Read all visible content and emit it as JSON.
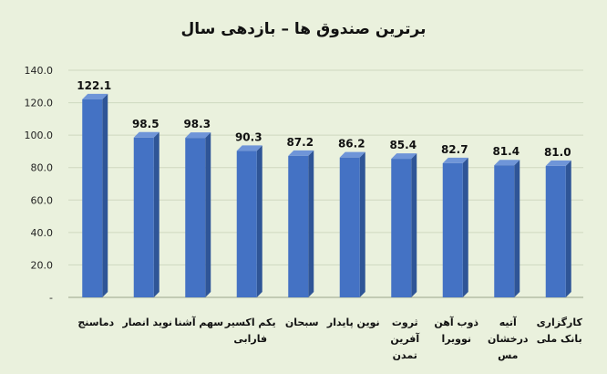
{
  "chart_data": {
    "type": "bar",
    "title": "برترین صندوق ها – بازدهی سال",
    "categories": [
      [
        "دماسنج"
      ],
      [
        "نوید انصار"
      ],
      [
        "سهم آشنا"
      ],
      [
        "یکم اکسیر",
        "فارابی"
      ],
      [
        "سبحان"
      ],
      [
        "نوین پایدار"
      ],
      [
        "ثروت",
        "آفرین",
        "تمدن"
      ],
      [
        "ذوب آهن",
        "نوویرا"
      ],
      [
        "آتیه",
        "درخشان",
        "مس"
      ],
      [
        "کارگزاری",
        "بانک ملی"
      ]
    ],
    "values": [
      122.1,
      98.5,
      98.3,
      90.3,
      87.2,
      86.2,
      85.4,
      82.7,
      81.4,
      81.0
    ],
    "data_labels": [
      "122.1",
      "98.5",
      "98.3",
      "90.3",
      "87.2",
      "86.2",
      "85.4",
      "82.7",
      "81.4",
      "81.0"
    ],
    "ylim": [
      0,
      140
    ],
    "yticks": [
      "-",
      "20.0",
      "40.0",
      "60.0",
      "80.0",
      "100.0",
      "120.0",
      "140.0"
    ],
    "grid": true,
    "colors": {
      "bar_front": "#4472c4",
      "bar_side": "#2f5597",
      "bar_top": "#6f95d8",
      "background": "#eaf1dd"
    }
  }
}
